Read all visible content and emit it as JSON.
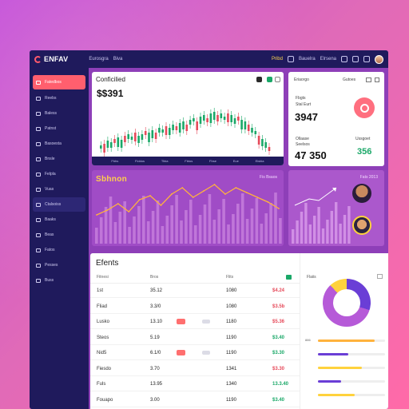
{
  "app": {
    "logo": "ENFAV",
    "nav_title": "Eurosgra",
    "nav_sub": "Biva"
  },
  "topbar": {
    "yellow": "Pribd",
    "item": "Bauelra",
    "dropdown": "Elrsena"
  },
  "sidebar": {
    "items": [
      {
        "label": "Fatedbos",
        "state": "active"
      },
      {
        "label": "Reebs",
        "state": ""
      },
      {
        "label": "Baless",
        "state": ""
      },
      {
        "label": "Patnst",
        "state": ""
      },
      {
        "label": "Basoesta",
        "state": ""
      },
      {
        "label": "Bnsle",
        "state": ""
      },
      {
        "label": "Felpla",
        "state": ""
      },
      {
        "label": "Vuas",
        "state": ""
      },
      {
        "label": "Ctalsoiss",
        "state": "selected"
      },
      {
        "label": "Baaks",
        "state": ""
      },
      {
        "label": "Beas",
        "state": ""
      },
      {
        "label": "Fatos",
        "state": ""
      },
      {
        "label": "Pesses",
        "state": ""
      },
      {
        "label": "Buss",
        "state": ""
      }
    ]
  },
  "main_chart": {
    "title": "Conficilied",
    "price": "$$391",
    "footer": [
      "Fbhs",
      "Fiddos",
      "Tlbia",
      "Fbtos",
      "Fbse",
      "Eue",
      "Eisbia"
    ]
  },
  "stat_card": {
    "label1": "Fbgts",
    "label2": "Stal Eurt",
    "value": "3947",
    "label3": "Ollaase",
    "label4": "Seelsos",
    "label5": "Ussgoet",
    "value2": "47 350",
    "value3": "356",
    "header_left": "Eriaorgo",
    "header_right": "Gutoes"
  },
  "mid_chart": {
    "title": "Sbhnon",
    "right": "Fis Bsaos"
  },
  "right_block": {
    "label": "Fats 2013"
  },
  "table": {
    "title": "Efents",
    "headers": [
      "Fitnesi",
      "Bros",
      "Flits"
    ],
    "rows": [
      {
        "name": "1st",
        "price": "35.12",
        "tag": "",
        "vol": "1080",
        "chg": "$4.24",
        "dir": "neg"
      },
      {
        "name": "Fliad",
        "price": "3.3/0",
        "tag": "",
        "vol": "1080",
        "chg": "$3.5b",
        "dir": "neg"
      },
      {
        "name": "Lusko",
        "price": "13.10",
        "tag": "red",
        "vol": "1180",
        "chg": "$5.36",
        "dir": "neg"
      },
      {
        "name": "Steos",
        "price": "5.19",
        "tag": "",
        "vol": "1190",
        "chg": "$3.40",
        "dir": "pos"
      },
      {
        "name": "Nid5",
        "price": "6.1/0",
        "tag": "red",
        "vol": "1190",
        "chg": "$3.30",
        "dir": "pos"
      },
      {
        "name": "Fiesdo",
        "price": "3.70",
        "tag": "",
        "vol": "1341",
        "chg": "$3.30",
        "dir": "neg"
      },
      {
        "name": "Fuls",
        "price": "13.95",
        "tag": "",
        "vol": "1340",
        "chg": "13.3.40",
        "dir": "pos"
      },
      {
        "name": "Fouapo",
        "price": "3.00",
        "tag": "",
        "vol": "1190",
        "chg": "$3.40",
        "dir": "pos"
      }
    ]
  },
  "donut_panel": {
    "label": "Flaiis",
    "labels": [
      "886",
      "",
      "",
      "",
      ""
    ],
    "bars": [
      {
        "value": 0.85,
        "color": "#ffb23d"
      },
      {
        "value": 0.45,
        "color": "#6a3ed6"
      },
      {
        "value": 0.65,
        "color": "#ffd23d"
      },
      {
        "value": 0.35,
        "color": "#6a3ed6"
      },
      {
        "value": 0.55,
        "color": "#ffd23d"
      }
    ]
  },
  "colors": {
    "accent": "#ff5f6e",
    "navy": "#1f1a5c",
    "green": "#1aa868",
    "red": "#e64a5a"
  },
  "chart_data": [
    {
      "type": "line",
      "title": "Sbhnon",
      "series": [
        {
          "values": [
            36,
            42,
            50,
            40,
            55,
            60,
            48,
            62,
            70,
            58,
            66,
            74,
            62,
            70,
            64,
            58,
            52,
            44
          ]
        }
      ]
    }
  ]
}
